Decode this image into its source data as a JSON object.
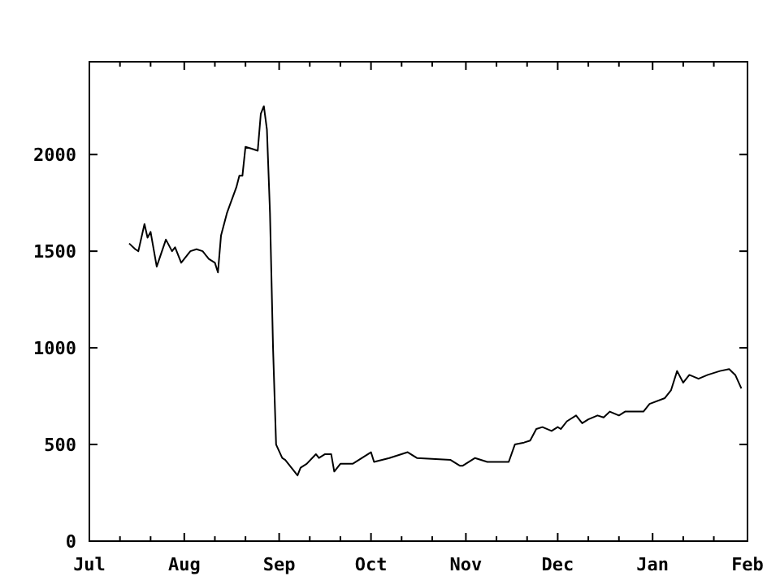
{
  "chart_data": {
    "type": "line",
    "x": [
      "2000-07-14",
      "2000-07-16",
      "2000-07-17",
      "2000-07-19",
      "2000-07-20",
      "2000-07-21",
      "2000-07-23",
      "2000-07-26",
      "2000-07-28",
      "2000-07-29",
      "2000-07-31",
      "2000-08-03",
      "2000-08-05",
      "2000-08-07",
      "2000-08-09",
      "2000-08-11",
      "2000-08-12",
      "2000-08-13",
      "2000-08-15",
      "2000-08-18",
      "2000-08-19",
      "2000-08-20",
      "2000-08-21",
      "2000-08-23",
      "2000-08-25",
      "2000-08-26",
      "2000-08-27",
      "2000-08-28",
      "2000-08-29",
      "2000-08-30",
      "2000-08-31",
      "2000-09-02",
      "2000-09-03",
      "2000-09-05",
      "2000-09-07",
      "2000-09-08",
      "2000-09-10",
      "2000-09-13",
      "2000-09-14",
      "2000-09-16",
      "2000-09-18",
      "2000-09-19",
      "2000-09-21",
      "2000-09-25",
      "2000-09-27",
      "2000-10-01",
      "2000-10-02",
      "2000-10-07",
      "2000-10-13",
      "2000-10-16",
      "2000-10-27",
      "2000-10-30",
      "2000-10-31",
      "2000-11-04",
      "2000-11-08",
      "2000-11-15",
      "2000-11-17",
      "2000-11-20",
      "2000-11-22",
      "2000-11-24",
      "2000-11-26",
      "2000-11-29",
      "2000-12-01",
      "2000-12-02",
      "2000-12-04",
      "2000-12-07",
      "2000-12-09",
      "2000-12-11",
      "2000-12-14",
      "2000-12-16",
      "2000-12-18",
      "2000-12-21",
      "2000-12-23",
      "2000-12-29",
      "2000-12-31",
      "2001-01-05",
      "2001-01-07",
      "2001-01-09",
      "2001-01-11",
      "2001-01-13",
      "2001-01-16",
      "2001-01-19",
      "2001-01-23",
      "2001-01-26",
      "2001-01-28",
      "2001-01-30"
    ],
    "values": [
      1540,
      1510,
      1500,
      1640,
      1570,
      1600,
      1420,
      1560,
      1500,
      1520,
      1440,
      1500,
      1510,
      1500,
      1460,
      1440,
      1390,
      1580,
      1700,
      1830,
      1890,
      1890,
      2040,
      2030,
      2020,
      2210,
      2250,
      2130,
      1700,
      1000,
      500,
      430,
      420,
      380,
      340,
      380,
      400,
      450,
      430,
      450,
      450,
      360,
      400,
      400,
      420,
      460,
      410,
      430,
      460,
      430,
      420,
      390,
      390,
      430,
      410,
      410,
      500,
      510,
      520,
      580,
      590,
      570,
      590,
      580,
      620,
      650,
      610,
      630,
      650,
      640,
      670,
      650,
      670,
      670,
      710,
      740,
      780,
      880,
      820,
      860,
      840,
      860,
      880,
      890,
      860,
      790
    ],
    "color": "#000000",
    "line_style": "solid",
    "marker": "none",
    "grid": false,
    "xlim": [
      "2000-07-01",
      "2001-02-01"
    ],
    "xticks": [
      {
        "value": "2000-07-01",
        "label": "Jul"
      },
      {
        "value": "2000-07-11",
        "label": null
      },
      {
        "value": "2000-07-21",
        "label": null
      },
      {
        "value": "2000-08-01",
        "label": "Aug"
      },
      {
        "value": "2000-08-11",
        "label": null
      },
      {
        "value": "2000-08-21",
        "label": null
      },
      {
        "value": "2000-09-01",
        "label": "Sep"
      },
      {
        "value": "2000-09-11",
        "label": null
      },
      {
        "value": "2000-09-21",
        "label": null
      },
      {
        "value": "2000-10-01",
        "label": "Oct"
      },
      {
        "value": "2000-10-11",
        "label": null
      },
      {
        "value": "2000-10-21",
        "label": null
      },
      {
        "value": "2000-11-01",
        "label": "Nov"
      },
      {
        "value": "2000-11-11",
        "label": null
      },
      {
        "value": "2000-11-21",
        "label": null
      },
      {
        "value": "2000-12-01",
        "label": "Dec"
      },
      {
        "value": "2000-12-11",
        "label": null
      },
      {
        "value": "2000-12-21",
        "label": null
      },
      {
        "value": "2001-01-01",
        "label": "Jan"
      },
      {
        "value": "2001-01-11",
        "label": null
      },
      {
        "value": "2001-01-21",
        "label": null
      },
      {
        "value": "2001-02-01",
        "label": "Feb"
      }
    ],
    "ylim": [
      0,
      2480
    ],
    "yticks": [
      0,
      500,
      1000,
      1500,
      2000
    ]
  }
}
